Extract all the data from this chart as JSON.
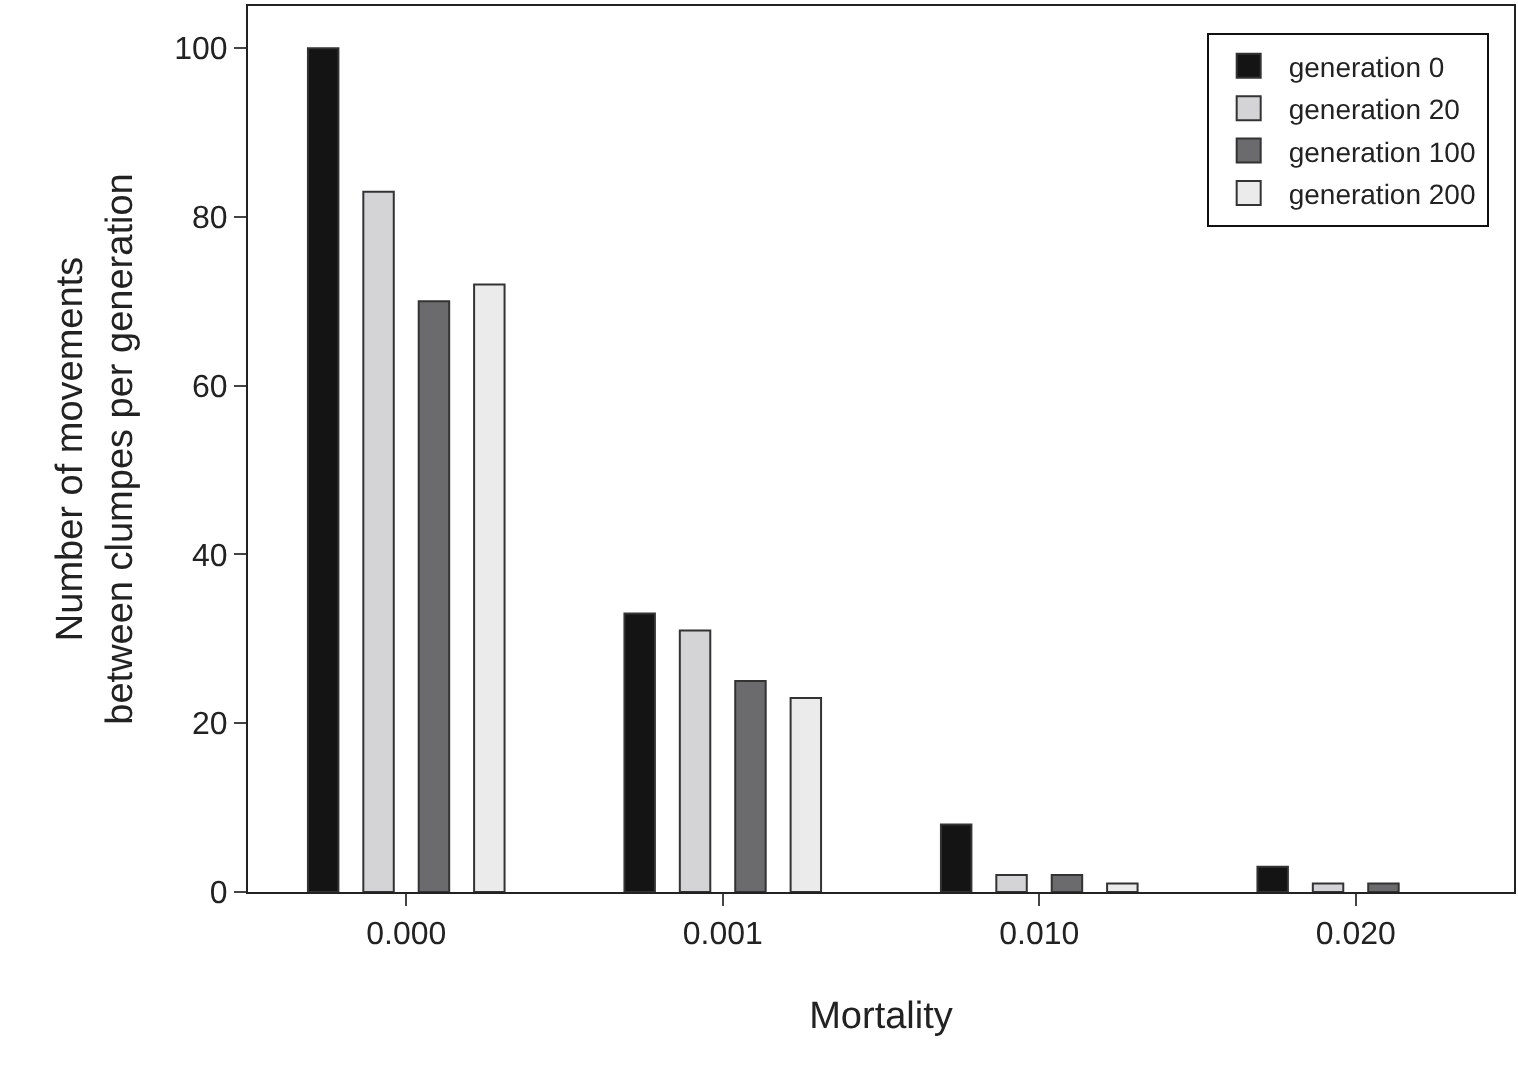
{
  "chart_data": {
    "type": "bar",
    "xlabel": "Mortality",
    "ylabel": "Number of movements\nbetween clumpes per generation",
    "categories": [
      "0.000",
      "0.001",
      "0.010",
      "0.020"
    ],
    "series": [
      {
        "name": "generation 0",
        "color": "#141414",
        "values": [
          100,
          33,
          8,
          3
        ]
      },
      {
        "name": "generation 20",
        "color": "#d4d4d6",
        "values": [
          83,
          31,
          2,
          1
        ]
      },
      {
        "name": "generation 100",
        "color": "#6b6b6d",
        "values": [
          70,
          25,
          2,
          1
        ]
      },
      {
        "name": "generation 200",
        "color": "#ebebeb",
        "values": [
          72,
          23,
          1,
          null
        ]
      }
    ],
    "ylim": [
      0,
      105
    ],
    "yticks": [
      0,
      20,
      40,
      60,
      80,
      100
    ],
    "legend": "top right"
  }
}
